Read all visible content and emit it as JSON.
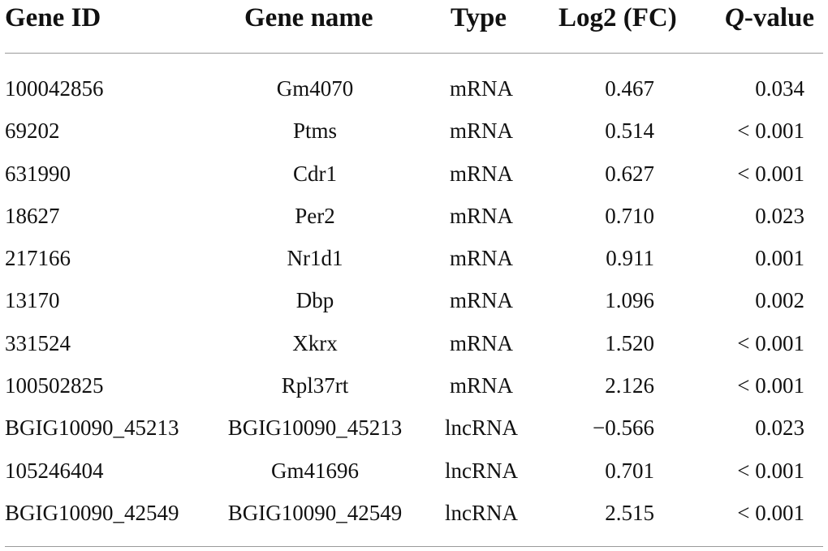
{
  "table": {
    "headers": {
      "gene_id": "Gene ID",
      "gene_name": "Gene name",
      "type": "Type",
      "log2fc": "Log2 (FC)",
      "qvalue_q": "Q",
      "qvalue_rest": "-value"
    },
    "rows": [
      {
        "gene_id": "100042856",
        "gene_name": "Gm4070",
        "type": "mRNA",
        "log2fc": "0.467",
        "qvalue": "0.034"
      },
      {
        "gene_id": "69202",
        "gene_name": "Ptms",
        "type": "mRNA",
        "log2fc": "0.514",
        "qvalue": "< 0.001"
      },
      {
        "gene_id": "631990",
        "gene_name": "Cdr1",
        "type": "mRNA",
        "log2fc": "0.627",
        "qvalue": "< 0.001"
      },
      {
        "gene_id": "18627",
        "gene_name": "Per2",
        "type": "mRNA",
        "log2fc": "0.710",
        "qvalue": "0.023"
      },
      {
        "gene_id": "217166",
        "gene_name": "Nr1d1",
        "type": "mRNA",
        "log2fc": "0.911",
        "qvalue": "0.001"
      },
      {
        "gene_id": "13170",
        "gene_name": "Dbp",
        "type": "mRNA",
        "log2fc": "1.096",
        "qvalue": "0.002"
      },
      {
        "gene_id": "331524",
        "gene_name": "Xkrx",
        "type": "mRNA",
        "log2fc": "1.520",
        "qvalue": "< 0.001"
      },
      {
        "gene_id": "100502825",
        "gene_name": "Rpl37rt",
        "type": "mRNA",
        "log2fc": "2.126",
        "qvalue": "< 0.001"
      },
      {
        "gene_id": "BGIG10090_45213",
        "gene_name": "BGIG10090_45213",
        "type": "lncRNA",
        "log2fc": "−0.566",
        "qvalue": "0.023"
      },
      {
        "gene_id": "105246404",
        "gene_name": "Gm41696",
        "type": "lncRNA",
        "log2fc": "0.701",
        "qvalue": "< 0.001"
      },
      {
        "gene_id": "BGIG10090_42549",
        "gene_name": "BGIG10090_42549",
        "type": "lncRNA",
        "log2fc": "2.515",
        "qvalue": "< 0.001"
      }
    ]
  }
}
